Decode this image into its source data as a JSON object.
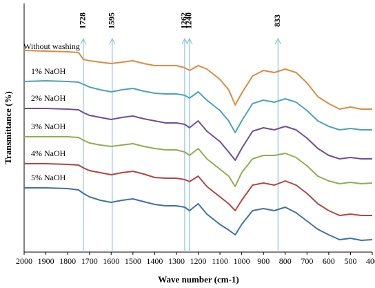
{
  "chart_data": {
    "type": "line",
    "x_label": "Wave number (cm-1)",
    "y_label": "Transmittance (%)",
    "x": [
      2000,
      1900,
      1800,
      1750,
      1728,
      1700,
      1650,
      1600,
      1550,
      1500,
      1450,
      1400,
      1350,
      1300,
      1262,
      1240,
      1200,
      1160,
      1100,
      1060,
      1030,
      1000,
      950,
      900,
      850,
      800,
      750,
      700,
      650,
      600,
      550,
      500,
      450,
      400
    ],
    "xlim": [
      2000,
      400
    ],
    "xticks": [
      2000,
      1900,
      1800,
      1700,
      1600,
      1500,
      1400,
      1300,
      1200,
      1100,
      1000,
      900,
      800,
      700,
      600,
      500,
      400
    ],
    "ylim": [
      0,
      360
    ],
    "annotations": [
      1728,
      1595,
      1262,
      1240,
      833
    ],
    "annotation_color": "#8cc4e0",
    "series": [
      {
        "name": "Without washing",
        "color": "#e08a3c",
        "values": [
          292,
          291,
          290,
          289,
          279,
          277,
          275,
          273,
          275,
          277,
          273,
          270,
          270,
          270,
          267,
          263,
          270,
          265,
          250,
          235,
          213,
          230,
          255,
          263,
          260,
          265,
          260,
          245,
          225,
          215,
          207,
          210,
          207,
          207
        ]
      },
      {
        "name": "1% NaOH",
        "color": "#4aa3b8",
        "values": [
          247,
          248,
          247,
          246,
          243,
          239,
          235,
          232,
          235,
          237,
          233,
          230,
          229,
          229,
          227,
          223,
          232,
          220,
          205,
          190,
          173,
          190,
          215,
          220,
          217,
          222,
          217,
          205,
          190,
          182,
          177,
          179,
          177,
          177
        ]
      },
      {
        "name": "2% NaOH",
        "color": "#6b4e9b",
        "values": [
          208,
          208,
          207,
          206,
          202,
          198,
          195,
          192,
          195,
          197,
          193,
          190,
          187,
          187,
          185,
          180,
          190,
          175,
          160,
          145,
          133,
          150,
          175,
          180,
          177,
          182,
          177,
          165,
          150,
          140,
          135,
          137,
          135,
          135
        ]
      },
      {
        "name": "3% NaOH",
        "color": "#8db04a",
        "values": [
          167,
          167,
          167,
          166,
          162,
          158,
          155,
          153,
          155,
          157,
          153,
          150,
          148,
          148,
          145,
          140,
          150,
          135,
          120,
          110,
          95,
          115,
          135,
          140,
          140,
          143,
          137,
          125,
          110,
          103,
          99,
          101,
          99,
          100
        ]
      },
      {
        "name": "4% NaOH",
        "color": "#b5443f",
        "values": [
          128,
          128,
          127,
          126,
          122,
          118,
          115,
          112,
          115,
          117,
          113,
          108,
          107,
          107,
          105,
          102,
          110,
          95,
          80,
          70,
          60,
          75,
          97,
          100,
          97,
          103,
          97,
          85,
          70,
          60,
          53,
          55,
          53,
          53
        ]
      },
      {
        "name": "5% NaOH",
        "color": "#3f6fb0",
        "values": [
          93,
          93,
          92,
          90,
          85,
          80,
          75,
          72,
          75,
          77,
          73,
          69,
          67,
          67,
          65,
          60,
          70,
          55,
          40,
          32,
          25,
          40,
          60,
          63,
          60,
          65,
          57,
          45,
          33,
          25,
          18,
          20,
          17,
          18
        ]
      }
    ]
  }
}
